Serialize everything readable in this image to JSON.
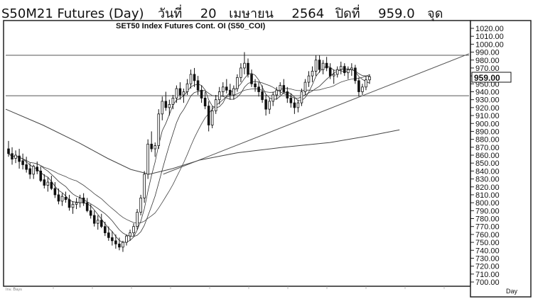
{
  "header": {
    "symbol": "S50M21 Futures (Day)",
    "day_label": "วันที่",
    "date_day": "20",
    "date_month": "เมษายน",
    "date_year": "2564",
    "close_label": "ปิดที่",
    "close_value": "959.0",
    "unit": "จุด"
  },
  "chart_data": {
    "type": "candlestick",
    "title": "SET50 Index Futures Cont. OI (S50_COI)",
    "ylim": [
      700,
      1020
    ],
    "yticks": [
      "700.00",
      "710.00",
      "720.00",
      "730.00",
      "740.00",
      "750.00",
      "760.00",
      "770.00",
      "780.00",
      "790.00",
      "800.00",
      "810.00",
      "820.00",
      "830.00",
      "840.00",
      "850.00",
      "860.00",
      "870.00",
      "880.00",
      "890.00",
      "900.00",
      "910.00",
      "920.00",
      "930.00",
      "940.00",
      "950.00",
      "960.00",
      "970.00",
      "980.00",
      "990.00",
      "1000.00",
      "1010.00",
      "1020.00"
    ],
    "last_price_label": "959.00",
    "xaxis_label": "Day",
    "bottom_left_label": "Inv. Days",
    "horizontal_lines": [
      986,
      935
    ],
    "trendline": {
      "from": [
        0.34,
        836
      ],
      "to": [
        1.0,
        988
      ]
    },
    "long_ma_line": [
      [
        0.0,
        918
      ],
      [
        0.08,
        898
      ],
      [
        0.16,
        875
      ],
      [
        0.22,
        856
      ],
      [
        0.27,
        842
      ],
      [
        0.31,
        836
      ],
      [
        0.36,
        843
      ],
      [
        0.42,
        854
      ],
      [
        0.5,
        863
      ],
      [
        0.6,
        870
      ],
      [
        0.7,
        876
      ],
      [
        0.78,
        884
      ],
      [
        0.85,
        892
      ]
    ],
    "ohlc": [
      [
        868,
        878,
        858,
        862
      ],
      [
        862,
        870,
        848,
        855
      ],
      [
        856,
        866,
        850,
        860
      ],
      [
        859,
        868,
        843,
        852
      ],
      [
        853,
        862,
        842,
        848
      ],
      [
        848,
        858,
        838,
        842
      ],
      [
        843,
        850,
        830,
        836
      ],
      [
        836,
        848,
        830,
        846
      ],
      [
        845,
        852,
        836,
        840
      ],
      [
        840,
        846,
        826,
        828
      ],
      [
        829,
        836,
        818,
        822
      ],
      [
        822,
        832,
        814,
        826
      ],
      [
        826,
        834,
        816,
        818
      ],
      [
        818,
        826,
        806,
        810
      ],
      [
        810,
        818,
        798,
        802
      ],
      [
        802,
        812,
        796,
        808
      ],
      [
        807,
        814,
        800,
        804
      ],
      [
        804,
        810,
        790,
        794
      ],
      [
        794,
        802,
        786,
        798
      ],
      [
        798,
        806,
        792,
        800
      ],
      [
        800,
        810,
        794,
        806
      ],
      [
        806,
        812,
        796,
        800
      ],
      [
        800,
        806,
        788,
        790
      ],
      [
        790,
        798,
        780,
        784
      ],
      [
        784,
        790,
        770,
        774
      ],
      [
        774,
        784,
        766,
        778
      ],
      [
        778,
        786,
        768,
        770
      ],
      [
        770,
        776,
        758,
        762
      ],
      [
        762,
        770,
        752,
        756
      ],
      [
        756,
        764,
        746,
        752
      ],
      [
        752,
        760,
        742,
        748
      ],
      [
        748,
        756,
        740,
        744
      ],
      [
        744,
        752,
        738,
        750
      ],
      [
        750,
        760,
        746,
        758
      ],
      [
        758,
        766,
        752,
        762
      ],
      [
        762,
        774,
        758,
        770
      ],
      [
        770,
        792,
        766,
        788
      ],
      [
        788,
        810,
        784,
        806
      ],
      [
        806,
        840,
        800,
        836
      ],
      [
        836,
        880,
        830,
        874
      ],
      [
        874,
        890,
        864,
        868
      ],
      [
        868,
        876,
        858,
        872
      ],
      [
        872,
        918,
        868,
        912
      ],
      [
        912,
        934,
        904,
        928
      ],
      [
        928,
        940,
        916,
        920
      ],
      [
        920,
        930,
        910,
        924
      ],
      [
        924,
        936,
        918,
        932
      ],
      [
        932,
        948,
        926,
        944
      ],
      [
        944,
        952,
        930,
        936
      ],
      [
        936,
        944,
        926,
        940
      ],
      [
        940,
        956,
        936,
        950
      ],
      [
        950,
        968,
        944,
        962
      ],
      [
        962,
        970,
        946,
        954
      ],
      [
        954,
        960,
        936,
        942
      ],
      [
        942,
        948,
        926,
        932
      ],
      [
        932,
        940,
        918,
        922
      ],
      [
        922,
        928,
        890,
        898
      ],
      [
        898,
        922,
        894,
        916
      ],
      [
        916,
        936,
        912,
        930
      ],
      [
        930,
        946,
        924,
        940
      ],
      [
        940,
        952,
        934,
        946
      ],
      [
        946,
        956,
        938,
        942
      ],
      [
        942,
        950,
        930,
        936
      ],
      [
        936,
        948,
        930,
        944
      ],
      [
        944,
        962,
        940,
        958
      ],
      [
        958,
        976,
        952,
        970
      ],
      [
        970,
        990,
        962,
        976
      ],
      [
        976,
        982,
        958,
        962
      ],
      [
        962,
        968,
        946,
        950
      ],
      [
        950,
        956,
        940,
        946
      ],
      [
        946,
        952,
        934,
        940
      ],
      [
        940,
        948,
        926,
        930
      ],
      [
        930,
        936,
        910,
        918
      ],
      [
        918,
        932,
        912,
        928
      ],
      [
        928,
        940,
        922,
        936
      ],
      [
        936,
        946,
        930,
        942
      ],
      [
        942,
        952,
        936,
        948
      ],
      [
        948,
        956,
        938,
        940
      ],
      [
        940,
        946,
        926,
        932
      ],
      [
        932,
        938,
        920,
        926
      ],
      [
        926,
        932,
        912,
        920
      ],
      [
        920,
        930,
        914,
        926
      ],
      [
        926,
        944,
        922,
        940
      ],
      [
        940,
        956,
        936,
        952
      ],
      [
        952,
        966,
        946,
        960
      ],
      [
        960,
        972,
        952,
        966
      ],
      [
        966,
        986,
        960,
        980
      ],
      [
        980,
        986,
        964,
        968
      ],
      [
        968,
        980,
        962,
        976
      ],
      [
        976,
        984,
        966,
        970
      ],
      [
        970,
        976,
        956,
        960
      ],
      [
        960,
        968,
        950,
        962
      ],
      [
        962,
        972,
        958,
        968
      ],
      [
        968,
        978,
        962,
        972
      ],
      [
        972,
        976,
        960,
        964
      ],
      [
        964,
        972,
        956,
        968
      ],
      [
        968,
        976,
        960,
        970
      ],
      [
        970,
        974,
        950,
        954
      ],
      [
        954,
        958,
        934,
        940
      ],
      [
        940,
        950,
        936,
        946
      ],
      [
        946,
        960,
        942,
        955
      ],
      [
        955,
        962,
        950,
        959
      ]
    ]
  }
}
